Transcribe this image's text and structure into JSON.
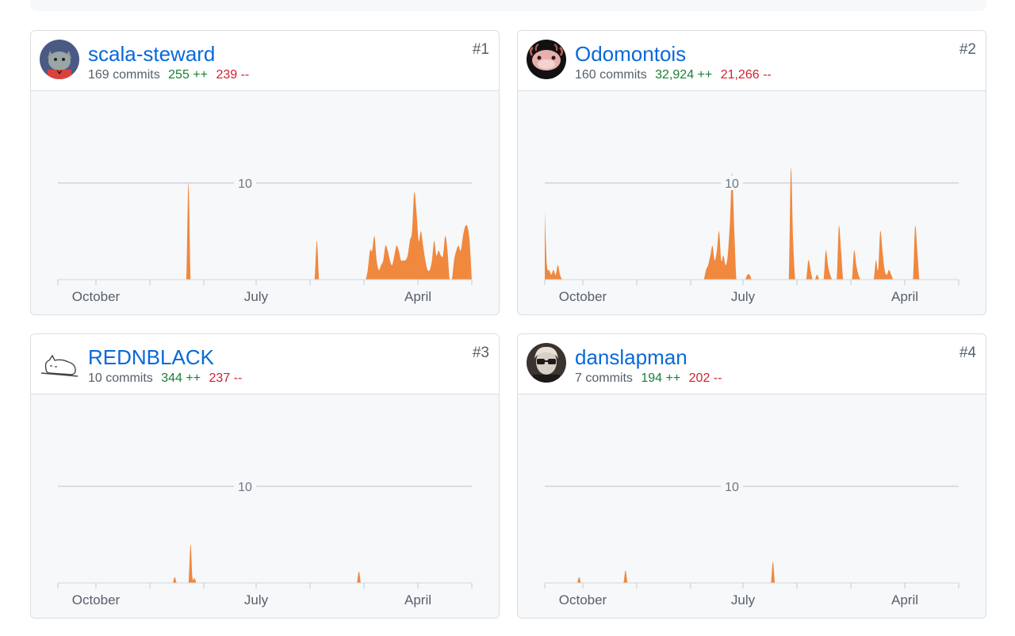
{
  "colors": {
    "area": "#f0883e",
    "link": "#0969da",
    "additions": "#1a7f37",
    "deletions": "#cf222e"
  },
  "contributors": [
    {
      "rank": "#1",
      "name": "scala-steward",
      "commits": "169 commits",
      "additions": "255 ++",
      "deletions": "239 --",
      "avatar_icon": "cat-avatar-icon",
      "chart_data": {
        "type": "area",
        "x_ticks": [
          "October",
          "July",
          "April"
        ],
        "y_ticks": [
          10
        ],
        "ylim": [
          0,
          10
        ],
        "grid": true,
        "series": [
          {
            "values": [
              0,
              0,
              0,
              0,
              0,
              0,
              0,
              0,
              0,
              0,
              0,
              0,
              0,
              0,
              0,
              0,
              0,
              0,
              0,
              0,
              0,
              0,
              0,
              0,
              0,
              0,
              0,
              0,
              0,
              0,
              0,
              0,
              0,
              0,
              0,
              0,
              0,
              0,
              0,
              0,
              0,
              0,
              0,
              0,
              0,
              0,
              0,
              0,
              0,
              0,
              0,
              0,
              0,
              0,
              0,
              0,
              0,
              0,
              0,
              10,
              0,
              0,
              0,
              0,
              0,
              0,
              0,
              0,
              0,
              0,
              0,
              0,
              0,
              0,
              0,
              0,
              0,
              0,
              0,
              0,
              0,
              0,
              0,
              0,
              0,
              0,
              0,
              0,
              0,
              0,
              0,
              0,
              0,
              0,
              0,
              0,
              0,
              0,
              0,
              0,
              0,
              0,
              0,
              0,
              0,
              0,
              0,
              0,
              0,
              0,
              0,
              0,
              0,
              0,
              0,
              0,
              0,
              4,
              0,
              0,
              0,
              0,
              0,
              0,
              0,
              0,
              0,
              0,
              0,
              0,
              0,
              0,
              0,
              0,
              0,
              0,
              0,
              0,
              0,
              0,
              1,
              3,
              3,
              4.5,
              2,
              1,
              1.5,
              2,
              3.5,
              3,
              2,
              1.5,
              2.5,
              3.5,
              3,
              2,
              2,
              2,
              2.5,
              4,
              5,
              9,
              7,
              4,
              5,
              3.5,
              2,
              1,
              1,
              2,
              4,
              2.5,
              3,
              2.5,
              2.5,
              4.5,
              3,
              0,
              0,
              2,
              3,
              3.5,
              3,
              4.5,
              5.5,
              5.5,
              4,
              0
            ]
          }
        ]
      }
    },
    {
      "rank": "#2",
      "name": "Odomontois",
      "commits": "160 commits",
      "additions": "32,924 ++",
      "deletions": "21,266 --",
      "avatar_icon": "axolotl-avatar-icon",
      "chart_data": {
        "type": "area",
        "x_ticks": [
          "October",
          "July",
          "April"
        ],
        "y_ticks": [
          10
        ],
        "ylim": [
          0,
          10
        ],
        "grid": true,
        "series": [
          {
            "values": [
              7,
              1.5,
              1,
              0.5,
              1,
              0.5,
              1.5,
              0.5,
              0,
              0,
              0,
              0,
              0,
              0,
              0,
              0,
              0,
              0,
              0,
              0,
              0,
              0,
              0,
              0,
              0,
              0,
              0,
              0,
              0,
              0,
              0,
              0,
              0,
              0,
              0,
              0,
              0,
              0,
              0,
              0,
              0,
              0,
              0,
              0,
              0,
              0,
              0,
              0,
              0,
              0,
              0,
              0,
              0,
              0,
              0,
              0,
              0,
              0,
              0,
              0,
              0,
              0,
              0,
              0,
              0,
              0,
              0,
              0,
              0,
              0,
              0,
              0,
              0,
              0,
              1,
              1.5,
              2.5,
              3.5,
              2,
              3,
              5,
              2,
              2.5,
              1.5,
              2.5,
              6,
              11,
              5,
              0,
              0,
              0,
              0,
              0,
              0.5,
              0.5,
              0,
              0,
              0,
              0,
              0,
              0,
              0,
              0,
              0,
              0,
              0,
              0,
              0,
              0,
              0,
              0,
              0,
              0,
              11.5,
              4,
              0,
              0,
              0,
              0,
              0,
              0,
              2,
              1,
              0,
              0,
              0.5,
              0,
              0,
              0,
              3,
              1.5,
              0.5,
              0,
              0,
              0,
              5.5,
              3,
              0,
              0,
              0,
              0,
              0,
              3,
              1.5,
              0.5,
              0,
              0,
              0,
              0,
              0,
              0,
              0,
              2,
              1,
              5,
              3,
              1,
              0.5,
              1,
              0.5,
              0,
              0,
              0,
              0,
              0,
              0,
              0,
              0,
              0,
              0,
              5.5,
              3,
              0,
              0,
              0,
              0,
              0,
              0,
              0,
              0,
              0,
              0,
              0,
              0,
              0,
              0,
              0,
              0,
              0,
              0,
              0
            ]
          }
        ]
      }
    },
    {
      "rank": "#3",
      "name": "REDNBLACK",
      "commits": "10 commits",
      "additions": "344 ++",
      "deletions": "237 --",
      "avatar_icon": "sleeping-cat-avatar-icon",
      "chart_data": {
        "type": "area",
        "x_ticks": [
          "October",
          "July",
          "April"
        ],
        "y_ticks": [
          10
        ],
        "ylim": [
          0,
          10
        ],
        "grid": true,
        "series": [
          {
            "values": [
              0,
              0,
              0,
              0,
              0,
              0,
              0,
              0,
              0,
              0,
              0,
              0,
              0,
              0,
              0,
              0,
              0,
              0,
              0,
              0,
              0,
              0,
              0,
              0,
              0,
              0,
              0,
              0,
              0,
              0,
              0,
              0,
              0,
              0,
              0,
              0,
              0,
              0,
              0,
              0,
              0,
              0,
              0,
              0,
              0,
              0,
              0,
              0,
              0,
              0,
              0,
              0,
              0,
              0,
              0,
              0,
              0,
              0,
              0,
              0.6,
              0,
              0,
              0,
              0,
              0,
              0,
              0,
              4,
              0.5,
              0.5,
              0,
              0,
              0,
              0,
              0,
              0,
              0,
              0,
              0,
              0,
              0,
              0,
              0,
              0,
              0,
              0,
              0,
              0,
              0,
              0,
              0,
              0,
              0,
              0,
              0,
              0,
              0,
              0,
              0,
              0,
              0,
              0,
              0,
              0,
              0,
              0,
              0,
              0,
              0,
              0,
              0,
              0,
              0,
              0,
              0,
              0,
              0,
              0,
              0,
              0,
              0,
              0,
              0,
              0,
              0,
              0,
              0,
              0,
              0,
              0,
              0,
              0,
              0,
              0,
              0,
              0,
              0,
              0,
              0,
              0,
              0,
              0,
              0,
              0,
              0,
              0,
              0,
              0,
              0,
              0,
              0,
              0,
              1.2,
              0,
              0,
              0,
              0,
              0,
              0,
              0,
              0,
              0,
              0,
              0,
              0,
              0,
              0,
              0,
              0,
              0,
              0,
              0,
              0,
              0,
              0,
              0,
              0,
              0,
              0,
              0,
              0,
              0,
              0,
              0,
              0,
              0,
              0,
              0,
              0,
              0,
              0,
              0,
              0,
              0,
              0,
              0,
              0,
              0,
              0,
              0,
              0,
              0,
              0,
              0,
              0,
              0,
              0,
              0,
              0,
              0
            ]
          }
        ]
      }
    },
    {
      "rank": "#4",
      "name": "danslapman",
      "commits": "7 commits",
      "additions": "194 ++",
      "deletions": "202 --",
      "avatar_icon": "portrait-avatar-icon",
      "chart_data": {
        "type": "area",
        "x_ticks": [
          "October",
          "July",
          "April"
        ],
        "y_ticks": [
          10
        ],
        "ylim": [
          0,
          10
        ],
        "grid": true,
        "series": [
          {
            "values": [
              0,
              0,
              0,
              0,
              0,
              0,
              0,
              0,
              0,
              0,
              0,
              0,
              0,
              0,
              0,
              0,
              0,
              0.6,
              0,
              0,
              0,
              0,
              0,
              0,
              0,
              0,
              0,
              0,
              0,
              0,
              0,
              0,
              0,
              0,
              0,
              0,
              0,
              0,
              0,
              0,
              1.3,
              0,
              0,
              0,
              0,
              0,
              0,
              0,
              0,
              0,
              0,
              0,
              0,
              0,
              0,
              0,
              0,
              0,
              0,
              0,
              0,
              0,
              0,
              0,
              0,
              0,
              0,
              0,
              0,
              0,
              0,
              0,
              0,
              0,
              0,
              0,
              0,
              0,
              0,
              0,
              0,
              0,
              0,
              0,
              0,
              0,
              0,
              0,
              0,
              0,
              0,
              0,
              0,
              0,
              0,
              0,
              0,
              0,
              0,
              0,
              0,
              0,
              0,
              0,
              0,
              0,
              0,
              0,
              0,
              0,
              0,
              0,
              0,
              2.2,
              0,
              0,
              0,
              0,
              0,
              0,
              0,
              0,
              0,
              0,
              0,
              0,
              0,
              0,
              0,
              0,
              0,
              0,
              0,
              0,
              0,
              0,
              0,
              0,
              0,
              0,
              0,
              0,
              0,
              0,
              0,
              0,
              0,
              0,
              0,
              0,
              0,
              0,
              0,
              0,
              0,
              0,
              0,
              0,
              0,
              0,
              0,
              0,
              0,
              0,
              0,
              0,
              0,
              0,
              0,
              0,
              0,
              0,
              0,
              0,
              0,
              0,
              0,
              0,
              0,
              0,
              0,
              0,
              0,
              0,
              0,
              0,
              0,
              0,
              0,
              0,
              0,
              0,
              0,
              0,
              0,
              0,
              0,
              0,
              0,
              0,
              0,
              0,
              0,
              0,
              0,
              0
            ]
          }
        ]
      }
    }
  ]
}
